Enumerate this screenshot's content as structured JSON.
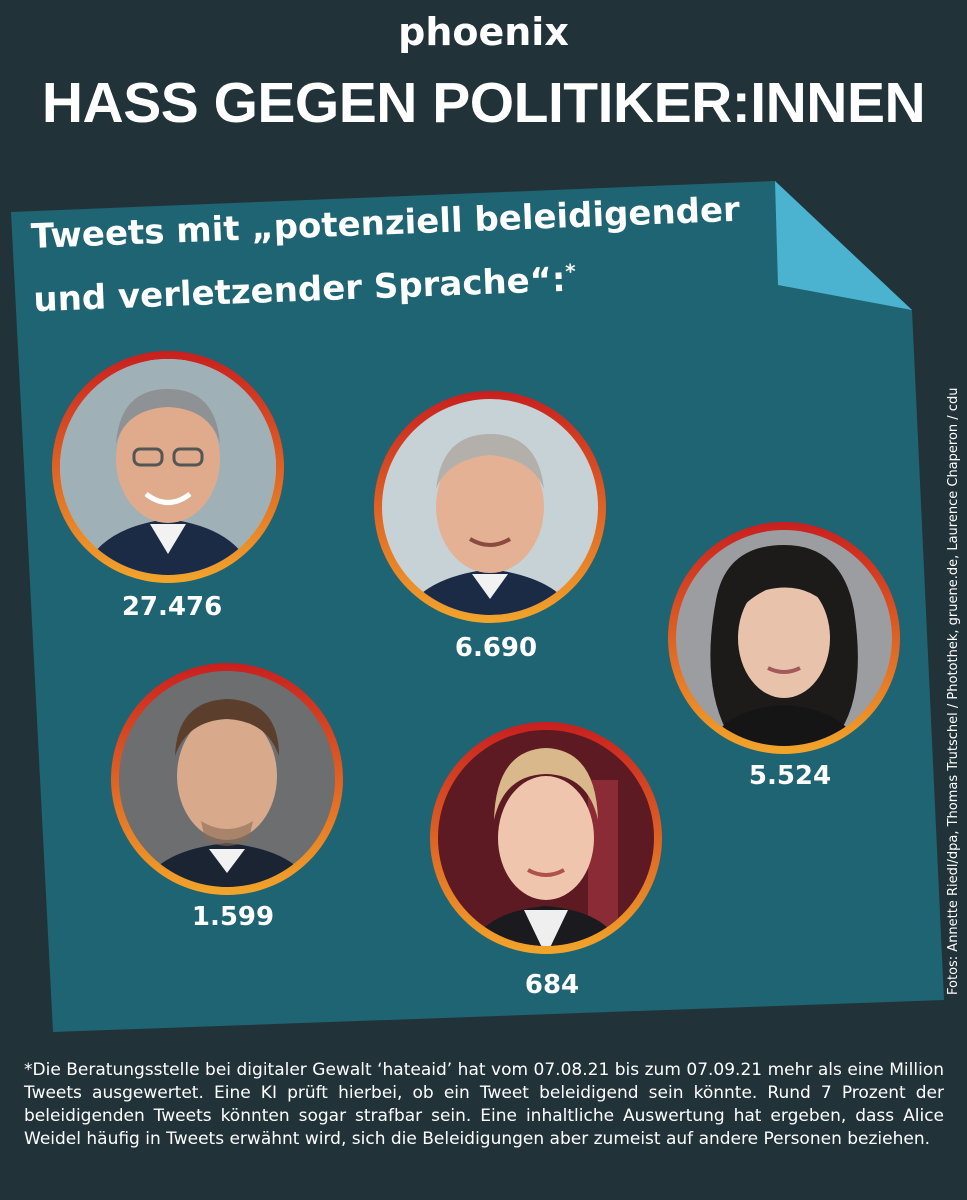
{
  "brand": "phoenix",
  "headline": "HASS GEGEN POLITIKER:INNEN",
  "card": {
    "subtitle_line1": "Tweets mit „potenziell beleidigender",
    "subtitle_line2": "und verletzender Sprache“:",
    "subtitle_mark": "*",
    "accent_color": "#1f6472",
    "fold_color": "#4bb3d0"
  },
  "people": [
    {
      "value": "27.476",
      "photo": "man-grey-hair-glasses"
    },
    {
      "value": "6.690",
      "photo": "man-bald-suit"
    },
    {
      "value": "5.524",
      "photo": "woman-dark-hair"
    },
    {
      "value": "1.599",
      "photo": "man-short-hair-suit"
    },
    {
      "value": "684",
      "photo": "woman-blonde-hair"
    }
  ],
  "credit": "Fotos: Annette Riedl/dpa, Thomas Trutschel / Photothek, gruene.de, Laurence Chaperon / cdu",
  "footnote": "*Die Beratungsstelle bei digitaler Gewalt ‘hateaid’ hat vom 07.08.21 bis zum 07.09.21 mehr als eine Million Tweets ausgewertet. Eine KI prüft hierbei, ob ein Tweet beleidigend sein könnte. Rund 7 Prozent der beleidigenden Tweets könnten sogar strafbar sein. Eine inhaltliche Auswertung hat ergeben, dass Alice Weidel häufig in Tweets erwähnt wird, sich die Beleidigungen aber zumeist auf andere Personen beziehen."
}
